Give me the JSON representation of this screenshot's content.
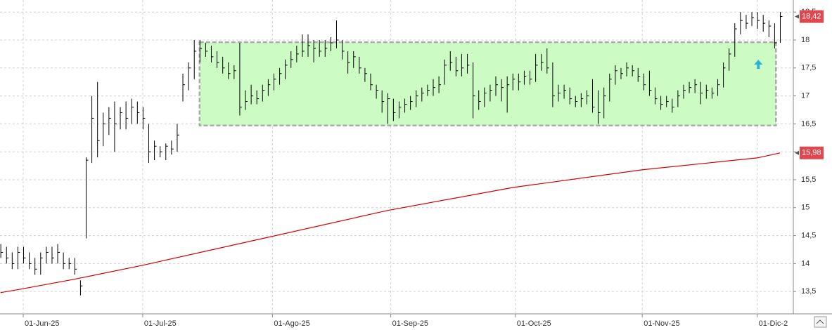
{
  "chart_data": {
    "type": "hlc",
    "color": "#000000",
    "xlim": [
      -0.08,
      139.35
    ],
    "ylim": [
      13.1,
      18.716
    ],
    "grid": true,
    "xticks": [
      {
        "value": 4,
        "label": "01-Jun-25"
      },
      {
        "value": 25,
        "label": "01-Jul-25"
      },
      {
        "value": 47.8,
        "label": "01-Ago-25"
      },
      {
        "value": 68.6,
        "label": "01-Sep-25"
      },
      {
        "value": 90.5,
        "label": "01-Oct-25"
      },
      {
        "value": 112.8,
        "label": "01-Nov-25"
      },
      {
        "value": 133,
        "label": "01-Dic-2"
      }
    ],
    "yticks": [
      {
        "value": 13.5,
        "label": "13,5"
      },
      14,
      {
        "value": 14.5,
        "label": "14,5"
      },
      15,
      {
        "value": 15.5,
        "label": "15,5"
      },
      16,
      {
        "value": 16.5,
        "label": "16,5"
      },
      17,
      {
        "value": 17.5,
        "label": "17,5"
      },
      18,
      {
        "value": 18.5,
        "label": "18,5"
      }
    ],
    "high": [
      14.35,
      14.3,
      14.2,
      14.3,
      14.3,
      14.2,
      14.1,
      14.2,
      14.3,
      14.3,
      14.35,
      14.2,
      14.1,
      14.1,
      13.7,
      15.9,
      17.0,
      17.25,
      16.7,
      16.8,
      16.9,
      16.8,
      16.9,
      16.95,
      16.9,
      16.8,
      16.5,
      16.2,
      16.1,
      16.15,
      16.2,
      16.5,
      17.4,
      17.6,
      18.0,
      18.0,
      17.95,
      17.9,
      17.8,
      17.7,
      17.6,
      17.55,
      17.95,
      17.1,
      17.2,
      17.1,
      17.2,
      17.3,
      17.4,
      17.5,
      17.65,
      17.8,
      17.9,
      18.1,
      18.1,
      18.0,
      18.0,
      18.0,
      18.05,
      18.35,
      18.0,
      17.8,
      17.8,
      17.7,
      17.5,
      17.4,
      17.2,
      17.1,
      17.05,
      16.95,
      16.9,
      16.95,
      17.0,
      17.1,
      17.15,
      17.2,
      17.3,
      17.35,
      17.65,
      17.8,
      17.7,
      17.75,
      17.75,
      17.6,
      17.1,
      17.15,
      17.2,
      17.35,
      17.3,
      17.35,
      17.4,
      17.4,
      17.45,
      17.45,
      17.75,
      17.75,
      17.85,
      17.6,
      17.2,
      17.2,
      17.15,
      17.0,
      17.05,
      17.1,
      17.3,
      17.1,
      17.15,
      17.4,
      17.55,
      17.5,
      17.6,
      17.55,
      17.5,
      17.4,
      17.45,
      17.15,
      17.0,
      17.0,
      16.95,
      17.1,
      17.2,
      17.25,
      17.3,
      17.25,
      17.2,
      17.15,
      17.3,
      17.6,
      17.85,
      18.3,
      18.5,
      18.45,
      18.5,
      18.5,
      18.45,
      18.35,
      18.3,
      18.5
    ],
    "low": [
      14.1,
      14.0,
      13.9,
      13.9,
      14.0,
      13.9,
      13.8,
      13.8,
      14.0,
      14.0,
      14.0,
      13.9,
      13.9,
      13.8,
      13.43,
      14.45,
      15.8,
      15.9,
      16.1,
      16.3,
      16.0,
      16.4,
      16.4,
      16.5,
      16.5,
      16.4,
      15.8,
      15.85,
      15.9,
      15.85,
      15.95,
      16.0,
      16.9,
      17.1,
      17.3,
      17.6,
      17.7,
      17.6,
      17.5,
      17.4,
      17.3,
      17.3,
      16.65,
      16.75,
      16.85,
      16.85,
      16.9,
      17.0,
      17.1,
      17.2,
      17.3,
      17.5,
      17.6,
      17.7,
      17.7,
      17.6,
      17.7,
      17.7,
      17.8,
      17.85,
      17.65,
      17.4,
      17.5,
      17.4,
      17.25,
      17.1,
      16.95,
      16.7,
      16.5,
      16.55,
      16.6,
      16.7,
      16.75,
      16.8,
      16.9,
      17.0,
      17.0,
      17.05,
      17.2,
      17.45,
      17.35,
      17.35,
      17.4,
      16.6,
      16.75,
      16.8,
      16.9,
      17.0,
      16.9,
      16.7,
      17.1,
      17.1,
      17.2,
      17.2,
      17.25,
      17.45,
      17.4,
      16.8,
      16.9,
      16.95,
      16.85,
      16.8,
      16.8,
      16.85,
      16.7,
      16.5,
      16.6,
      16.9,
      17.2,
      17.3,
      17.35,
      17.35,
      17.25,
      17.1,
      17.0,
      16.85,
      16.75,
      16.8,
      16.7,
      16.8,
      16.95,
      17.05,
      17.05,
      16.85,
      16.95,
      16.95,
      17.0,
      17.15,
      17.45,
      17.7,
      18.1,
      18.2,
      18.25,
      18.2,
      18.15,
      18.05,
      17.85,
      17.95
    ],
    "close": [
      14.2,
      14.1,
      14.0,
      14.2,
      14.1,
      14.0,
      13.9,
      14.1,
      14.2,
      14.1,
      14.2,
      14.0,
      14.0,
      13.9,
      13.6,
      15.85,
      16.6,
      16.2,
      16.5,
      16.6,
      16.5,
      16.7,
      16.6,
      16.8,
      16.7,
      16.6,
      16.0,
      16.1,
      16.0,
      16.1,
      16.05,
      16.3,
      17.2,
      17.5,
      17.8,
      17.85,
      17.8,
      17.7,
      17.6,
      17.5,
      17.4,
      17.45,
      16.8,
      16.9,
      17.0,
      16.95,
      17.1,
      17.2,
      17.3,
      17.4,
      17.55,
      17.65,
      17.75,
      17.8,
      17.9,
      17.85,
      17.8,
      17.85,
      17.95,
      18.0,
      17.8,
      17.6,
      17.7,
      17.5,
      17.4,
      17.2,
      17.1,
      16.9,
      16.95,
      16.7,
      16.8,
      16.85,
      16.9,
      17.0,
      17.05,
      17.1,
      17.15,
      17.2,
      17.55,
      17.6,
      17.45,
      17.5,
      17.55,
      17.0,
      16.9,
      17.05,
      17.1,
      17.2,
      17.15,
      17.2,
      17.3,
      17.25,
      17.35,
      17.3,
      17.55,
      17.6,
      17.5,
      17.0,
      17.05,
      17.1,
      16.95,
      16.9,
      16.95,
      17.0,
      16.8,
      16.7,
      17.0,
      17.3,
      17.45,
      17.4,
      17.5,
      17.45,
      17.35,
      17.2,
      17.1,
      16.95,
      16.85,
      16.9,
      16.8,
      17.0,
      17.1,
      17.15,
      17.2,
      17.05,
      17.1,
      17.05,
      17.2,
      17.5,
      17.75,
      18.2,
      18.35,
      18.3,
      18.4,
      18.35,
      18.3,
      18.25,
      17.95,
      18.42
    ],
    "price_tag": {
      "value": 18.42,
      "label": "18,42",
      "color": "#e0474c"
    },
    "ma": {
      "color": "#d40000",
      "x": [
        0,
        4,
        13,
        25,
        47,
        68,
        90,
        113,
        133,
        137
      ],
      "values": [
        13.48,
        13.55,
        13.72,
        13.97,
        14.47,
        14.95,
        15.36,
        15.68,
        15.89,
        15.98
      ],
      "tag": {
        "value": 15.98,
        "label": "15,98",
        "color": "#e0474c"
      }
    },
    "zone": {
      "xlim": [
        35,
        136.3
      ],
      "ylim": [
        16.47,
        17.96
      ],
      "fill": "#ccfcc4",
      "stroke": "#aaaaaa"
    },
    "arrow": {
      "x": 133.2,
      "y": 17.56,
      "color": "#29b6d6"
    }
  }
}
